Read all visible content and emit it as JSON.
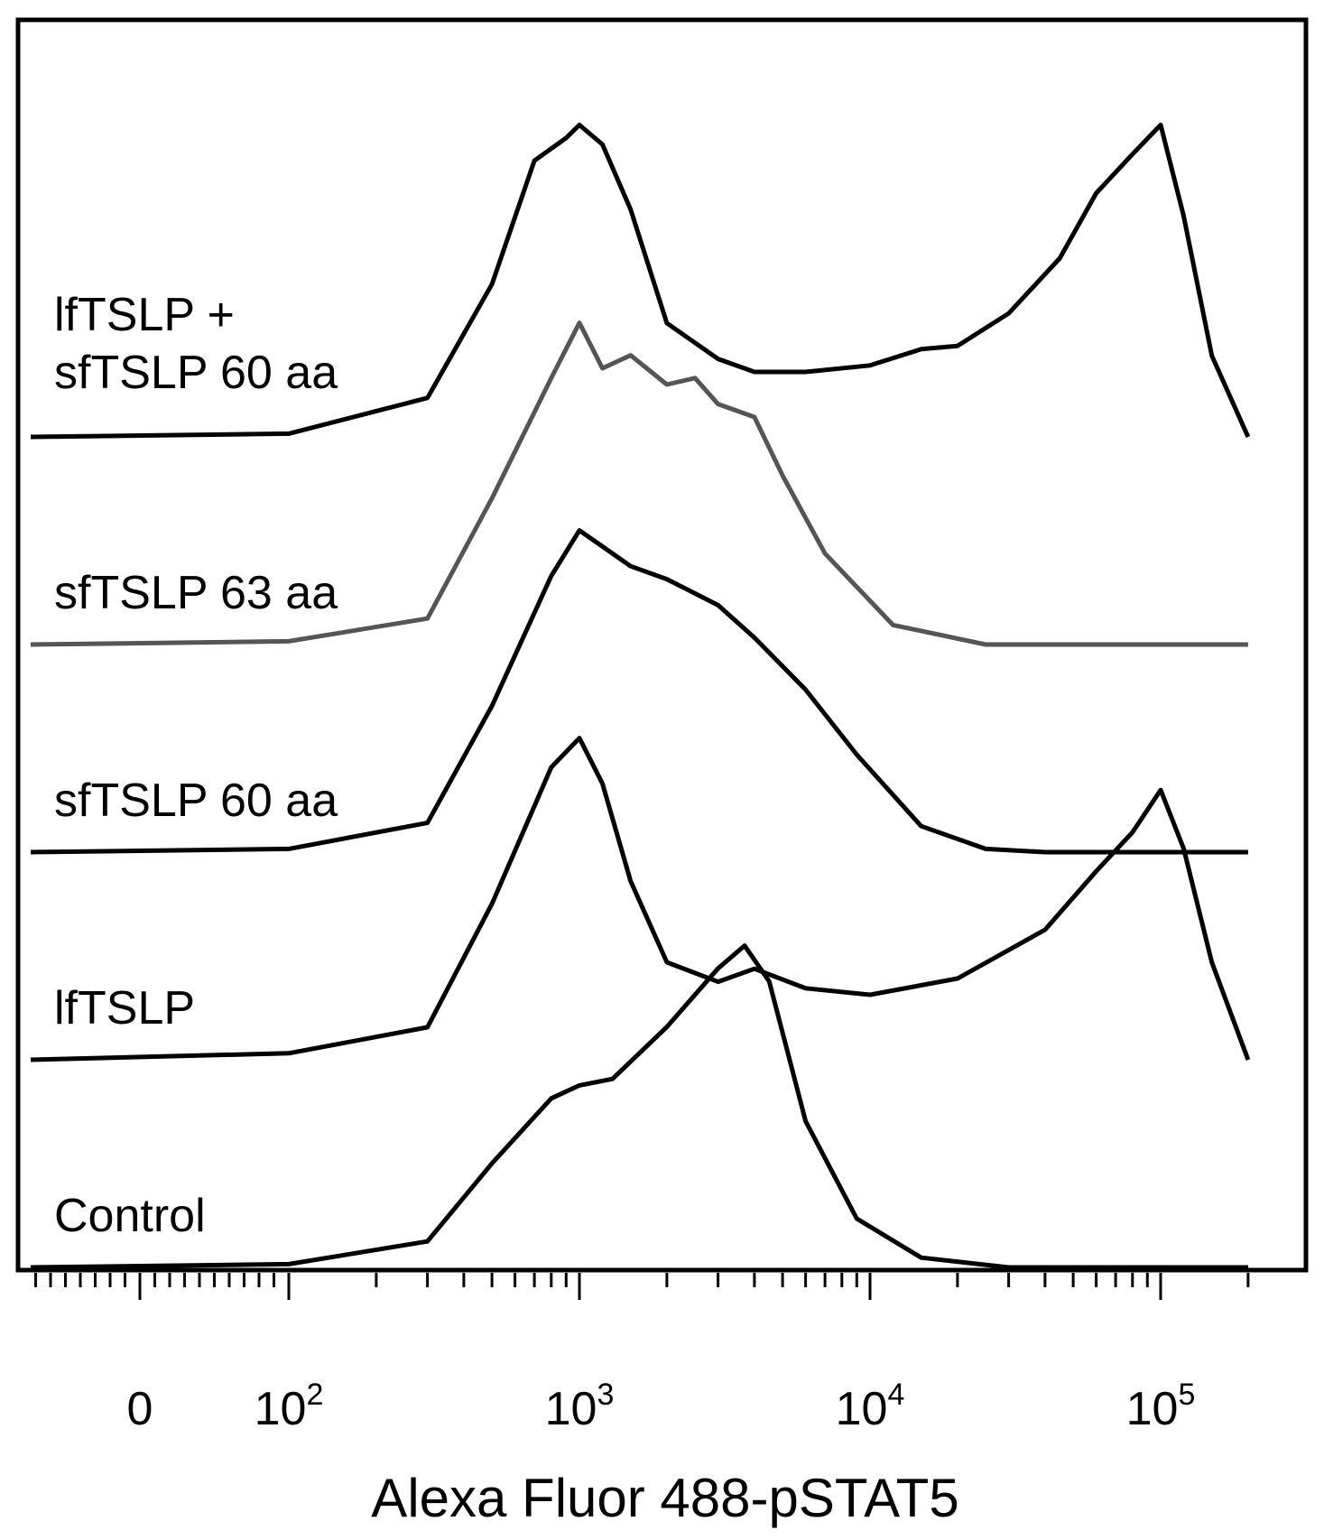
{
  "chart_data": {
    "type": "histogram",
    "xlabel": "Alexa Fluor 488-pSTAT5",
    "x_scale": "biexponential",
    "x_tick_labels": [
      {
        "value": 0,
        "text": "0"
      },
      {
        "value": 100,
        "base": "10",
        "exp": "2"
      },
      {
        "value": 1000,
        "base": "10",
        "exp": "3"
      },
      {
        "value": 10000,
        "base": "10",
        "exp": "4"
      },
      {
        "value": 100000,
        "base": "10",
        "exp": "5"
      }
    ],
    "layout": "offset stacked histograms",
    "series": [
      {
        "name": "Control",
        "color": "#000000",
        "points": [
          [
            0,
            0
          ],
          [
            100,
            0.01
          ],
          [
            300,
            0.08
          ],
          [
            500,
            0.32
          ],
          [
            800,
            0.52
          ],
          [
            1000,
            0.56
          ],
          [
            1300,
            0.58
          ],
          [
            2000,
            0.74
          ],
          [
            3000,
            0.92
          ],
          [
            3700,
            0.99
          ],
          [
            4500,
            0.88
          ],
          [
            6000,
            0.45
          ],
          [
            9000,
            0.15
          ],
          [
            15000,
            0.03
          ],
          [
            30000,
            0
          ],
          [
            200000,
            0
          ]
        ]
      },
      {
        "name": "lfTSLP",
        "color": "#000000",
        "points": [
          [
            0,
            0
          ],
          [
            100,
            0.02
          ],
          [
            300,
            0.1
          ],
          [
            500,
            0.48
          ],
          [
            800,
            0.9
          ],
          [
            1000,
            0.99
          ],
          [
            1200,
            0.85
          ],
          [
            1500,
            0.55
          ],
          [
            2000,
            0.3
          ],
          [
            3000,
            0.24
          ],
          [
            4000,
            0.28
          ],
          [
            6000,
            0.22
          ],
          [
            10000,
            0.2
          ],
          [
            20000,
            0.25
          ],
          [
            40000,
            0.4
          ],
          [
            60000,
            0.58
          ],
          [
            80000,
            0.7
          ],
          [
            100000,
            0.83
          ],
          [
            120000,
            0.65
          ],
          [
            150000,
            0.3
          ],
          [
            200000,
            0
          ]
        ]
      },
      {
        "name": "sfTSLP 60 aa",
        "color": "#000000",
        "points": [
          [
            0,
            0
          ],
          [
            100,
            0.01
          ],
          [
            300,
            0.09
          ],
          [
            500,
            0.45
          ],
          [
            800,
            0.85
          ],
          [
            1000,
            0.99
          ],
          [
            1500,
            0.88
          ],
          [
            2000,
            0.84
          ],
          [
            3000,
            0.76
          ],
          [
            4000,
            0.66
          ],
          [
            6000,
            0.5
          ],
          [
            9000,
            0.3
          ],
          [
            15000,
            0.08
          ],
          [
            25000,
            0.01
          ],
          [
            40000,
            0
          ],
          [
            200000,
            0
          ]
        ]
      },
      {
        "name": "sfTSLP 63 aa",
        "color": "#555555",
        "points": [
          [
            0,
            0
          ],
          [
            100,
            0.01
          ],
          [
            300,
            0.08
          ],
          [
            500,
            0.45
          ],
          [
            800,
            0.82
          ],
          [
            1000,
            0.99
          ],
          [
            1200,
            0.85
          ],
          [
            1500,
            0.89
          ],
          [
            2000,
            0.8
          ],
          [
            2500,
            0.82
          ],
          [
            3000,
            0.74
          ],
          [
            4000,
            0.7
          ],
          [
            5000,
            0.52
          ],
          [
            7000,
            0.28
          ],
          [
            12000,
            0.06
          ],
          [
            25000,
            0
          ],
          [
            200000,
            0
          ]
        ]
      },
      {
        "name": "lfTSLP + sfTSLP 60 aa",
        "color": "#000000",
        "points": [
          [
            0,
            0
          ],
          [
            100,
            0.01
          ],
          [
            300,
            0.12
          ],
          [
            500,
            0.47
          ],
          [
            700,
            0.85
          ],
          [
            900,
            0.92
          ],
          [
            1000,
            0.96
          ],
          [
            1200,
            0.9
          ],
          [
            1500,
            0.7
          ],
          [
            2000,
            0.35
          ],
          [
            3000,
            0.24
          ],
          [
            4000,
            0.2
          ],
          [
            6000,
            0.2
          ],
          [
            10000,
            0.22
          ],
          [
            15000,
            0.27
          ],
          [
            20000,
            0.28
          ],
          [
            30000,
            0.38
          ],
          [
            45000,
            0.55
          ],
          [
            60000,
            0.75
          ],
          [
            80000,
            0.87
          ],
          [
            100000,
            0.96
          ],
          [
            120000,
            0.68
          ],
          [
            150000,
            0.25
          ],
          [
            200000,
            0
          ]
        ]
      }
    ]
  }
}
